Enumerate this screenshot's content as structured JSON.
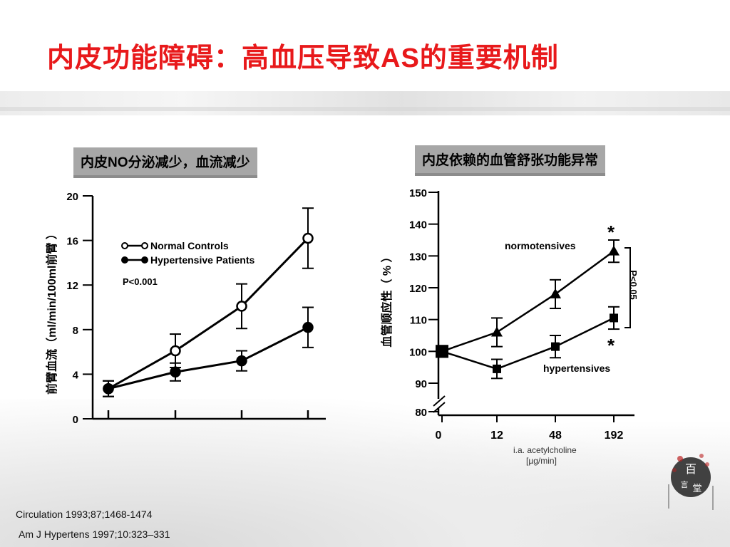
{
  "slide": {
    "title": "内皮功能障碍：高血压导致AS的重要机制",
    "references": [
      "Circulation 1993;87;1468-1474",
      "Am J Hypertens 1997;10:323–331"
    ],
    "logo_text": "百言堂",
    "colors": {
      "title": "#e8191b",
      "label_bg": "#a7a7a7",
      "ink": "#000000"
    }
  },
  "left_panel": {
    "label": "内皮NO分泌减少，血流减少"
  },
  "right_panel": {
    "label": "内皮依赖的血管舒张功能异常"
  },
  "chart_data": [
    {
      "type": "line",
      "ylabel": "前臂血流（ml/min/100ml前臂 ）",
      "yticks": [
        "0",
        "4",
        "8",
        "12",
        "16",
        "20"
      ],
      "ylim": [
        0,
        20
      ],
      "x": [
        0,
        1,
        2,
        3
      ],
      "xticks_labeled": false,
      "series": [
        {
          "name": "Normal Controls",
          "marker": "open-circle",
          "values": [
            2.7,
            6.1,
            10.1,
            16.2
          ],
          "errors": [
            0.7,
            1.5,
            2.0,
            2.7
          ]
        },
        {
          "name": "Hypertensive Patients",
          "marker": "filled-circle",
          "values": [
            2.7,
            4.2,
            5.2,
            8.2
          ],
          "errors": [
            0.7,
            0.8,
            0.9,
            1.8
          ]
        }
      ],
      "annotations": [
        "P<0.001"
      ],
      "legend": "top-left"
    },
    {
      "type": "line",
      "ylabel": "血管顺应性（ % ）",
      "yticks": [
        "80",
        "90",
        "100",
        "110",
        "120",
        "130",
        "140",
        "150"
      ],
      "ylim": [
        80,
        150
      ],
      "y_axis_break": true,
      "xticks": [
        "0",
        "12",
        "48",
        "192"
      ],
      "xlabel": [
        "i.a. acetylcholine",
        "[µg/min]"
      ],
      "series": [
        {
          "name": "normotensives",
          "marker": "filled-triangle",
          "values": [
            100,
            106,
            118,
            131.5
          ],
          "errors": [
            0,
            4.5,
            4.5,
            3.5
          ]
        },
        {
          "name": "hypertensives",
          "marker": "filled-square",
          "values": [
            100,
            94.5,
            101.5,
            110.5
          ],
          "errors": [
            0,
            3,
            3.5,
            3.5
          ]
        }
      ],
      "annotations": [
        "P<0.05",
        "*",
        "*"
      ],
      "legend": "inline labels"
    }
  ]
}
